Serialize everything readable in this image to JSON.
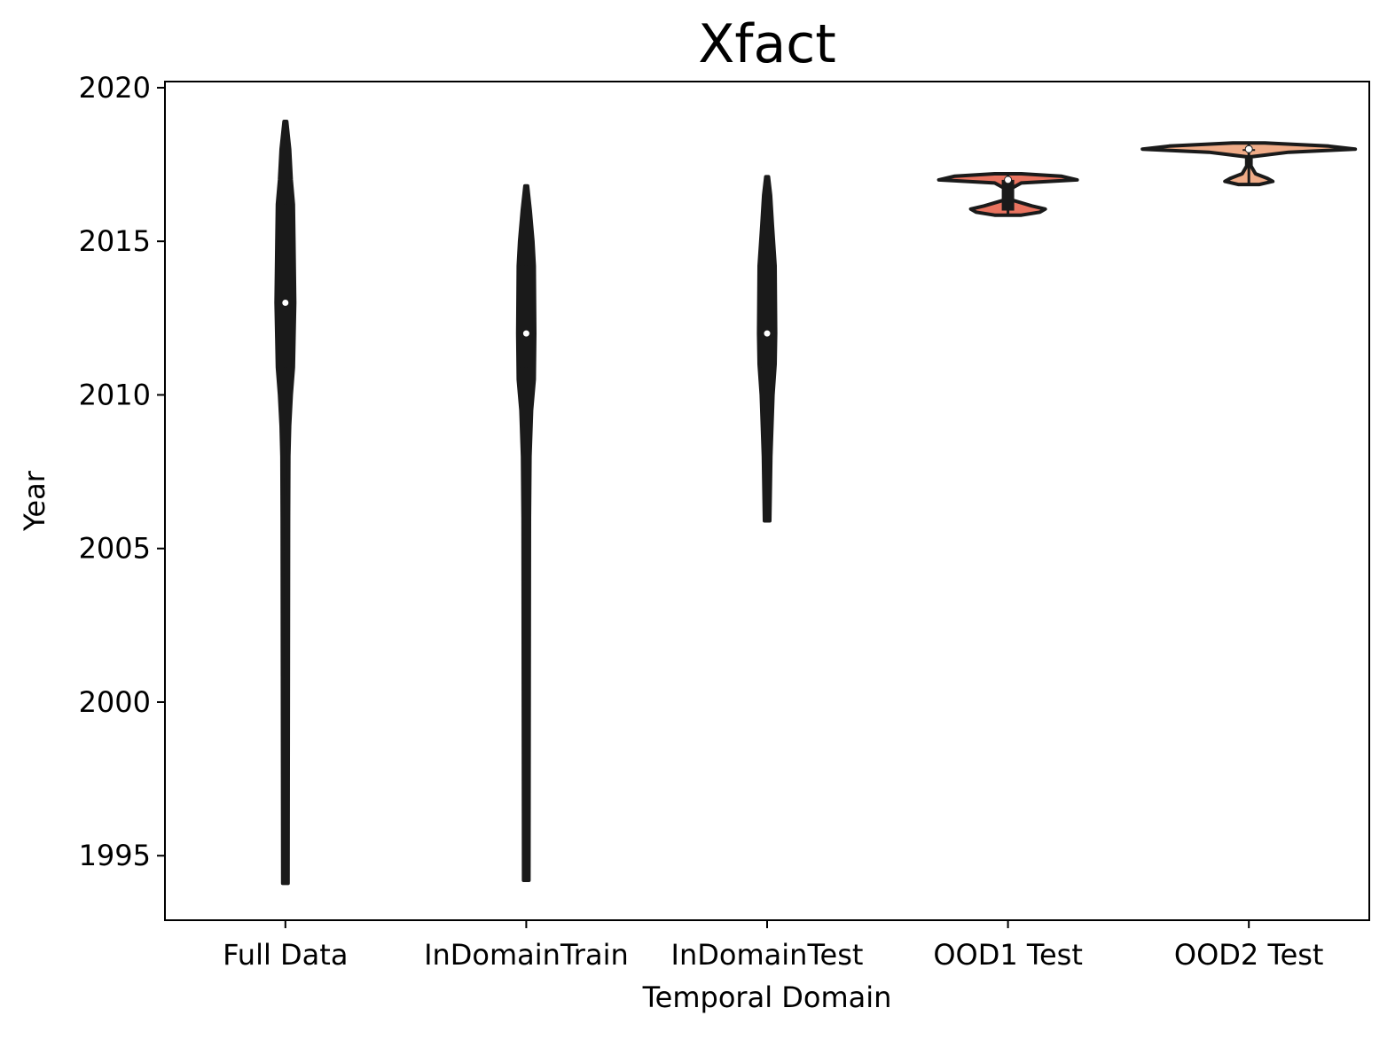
{
  "chart_data": {
    "type": "violin",
    "title": "Xfact",
    "xlabel": "Temporal Domain",
    "ylabel": "Year",
    "ylim": [
      1992.9,
      2020.2
    ],
    "yticks": [
      1995,
      2000,
      2005,
      2010,
      2015,
      2020
    ],
    "categories": [
      "Full Data",
      "InDomainTrain",
      "InDomainTest",
      "OOD1 Test",
      "OOD2 Test"
    ],
    "series": [
      {
        "category": "Full Data",
        "color": "#1a1a1a",
        "min": 1994.1,
        "q1": 2010.9,
        "median": 2013,
        "q3": 2016.2,
        "max": 2018.9,
        "profile": [
          [
            1994.1,
            0.1
          ],
          [
            2006,
            0.12
          ],
          [
            2008,
            0.13
          ],
          [
            2009,
            0.16
          ],
          [
            2010,
            0.22
          ],
          [
            2010.9,
            0.3
          ],
          [
            2013,
            0.35
          ],
          [
            2015,
            0.32
          ],
          [
            2016.2,
            0.3
          ],
          [
            2017,
            0.22
          ],
          [
            2018,
            0.16
          ],
          [
            2018.9,
            0.05
          ]
        ]
      },
      {
        "category": "InDomainTrain",
        "color": "#1a1a1a",
        "min": 1994.2,
        "q1": 2010.9,
        "median": 2012,
        "q3": 2014.2,
        "max": 2016.8,
        "profile": [
          [
            1994.2,
            0.1
          ],
          [
            2006,
            0.12
          ],
          [
            2008,
            0.14
          ],
          [
            2009.5,
            0.2
          ],
          [
            2010.5,
            0.3
          ],
          [
            2012,
            0.32
          ],
          [
            2014.2,
            0.3
          ],
          [
            2015,
            0.25
          ],
          [
            2016,
            0.15
          ],
          [
            2016.8,
            0.05
          ]
        ]
      },
      {
        "category": "InDomainTest",
        "color": "#1a1a1a",
        "min": 2005.9,
        "q1": 2010.9,
        "median": 2012,
        "q3": 2014.2,
        "max": 2017.1,
        "profile": [
          [
            2005.9,
            0.1
          ],
          [
            2008,
            0.14
          ],
          [
            2010,
            0.22
          ],
          [
            2011,
            0.3
          ],
          [
            2012,
            0.32
          ],
          [
            2014.2,
            0.3
          ],
          [
            2015.5,
            0.2
          ],
          [
            2016.5,
            0.13
          ],
          [
            2017.1,
            0.05
          ]
        ]
      },
      {
        "category": "OOD1 Test",
        "color": "#e9735f",
        "min": 2015.85,
        "q1": 2016,
        "median": 2017,
        "q3": 2017,
        "max": 2017.2,
        "profile": [
          [
            2015.85,
            0.5
          ],
          [
            2015.95,
            1.2
          ],
          [
            2016.05,
            1.4
          ],
          [
            2016.15,
            0.9
          ],
          [
            2016.35,
            0.12
          ],
          [
            2016.7,
            0.08
          ],
          [
            2016.9,
            0.5
          ],
          [
            2017,
            2.6
          ],
          [
            2017.12,
            2.0
          ],
          [
            2017.2,
            0.5
          ]
        ]
      },
      {
        "category": "OOD2 Test",
        "color": "#f0ac88",
        "min": 2016.85,
        "q1": 2018,
        "median": 2018,
        "q3": 2018,
        "max": 2018.2,
        "profile": [
          [
            2016.85,
            0.4
          ],
          [
            2016.95,
            0.9
          ],
          [
            2017.05,
            0.7
          ],
          [
            2017.2,
            0.25
          ],
          [
            2017.45,
            0.08
          ],
          [
            2017.75,
            0.08
          ],
          [
            2017.9,
            1.5
          ],
          [
            2018,
            4.0
          ],
          [
            2018.1,
            3.0
          ],
          [
            2018.2,
            0.6
          ]
        ]
      }
    ]
  }
}
